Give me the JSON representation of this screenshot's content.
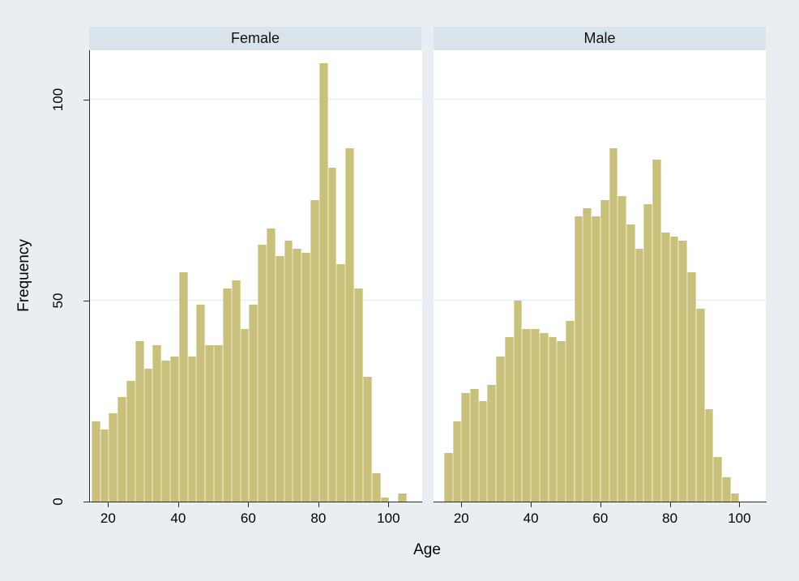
{
  "figure": {
    "bg_color": "#e8eef2",
    "plot_bg_color": "#ffffff",
    "strip_color": "#d9e3ec",
    "bar_color": "#c9c07b",
    "bar_edge_color": "#ddd7a8",
    "gridline_color": "#e2ebf2"
  },
  "chart_data": [
    {
      "type": "bar",
      "subtype": "histogram",
      "panel_title": "Female",
      "xlabel": "Age",
      "ylabel": "Frequency",
      "bin_start": 15,
      "bin_width": 2.5,
      "values": [
        20,
        18,
        22,
        26,
        30,
        40,
        33,
        39,
        35,
        36,
        57,
        36,
        49,
        39,
        39,
        53,
        55,
        43,
        49,
        64,
        68,
        61,
        65,
        63,
        62,
        75,
        109,
        83,
        59,
        88,
        53,
        31,
        7,
        1,
        0,
        2
      ],
      "xlim": [
        14.6,
        109.4
      ],
      "ylim": [
        0,
        112.3
      ],
      "x_ticks": [
        20,
        40,
        60,
        80,
        100
      ],
      "y_ticks": [
        0,
        50,
        100
      ],
      "grid_at": [
        50,
        100
      ],
      "legend_position": "none",
      "grid": "horizontal-only"
    },
    {
      "type": "bar",
      "subtype": "histogram",
      "panel_title": "Male",
      "xlabel": "Age",
      "ylabel": "Frequency",
      "bin_start": 15,
      "bin_width": 2.5,
      "values": [
        12,
        20,
        27,
        28,
        25,
        29,
        36,
        41,
        50,
        43,
        43,
        42,
        41,
        40,
        45,
        71,
        73,
        71,
        75,
        88,
        76,
        69,
        63,
        74,
        85,
        67,
        66,
        65,
        57,
        48,
        23,
        11,
        6,
        2
      ],
      "xlim": [
        12.0,
        107.6
      ],
      "ylim": [
        0,
        112.3
      ],
      "x_ticks": [
        20,
        40,
        60,
        80,
        100
      ],
      "y_ticks": [
        0,
        50,
        100
      ],
      "grid_at": [
        50,
        100
      ],
      "legend_position": "none",
      "grid": "horizontal-only"
    }
  ],
  "labels": {
    "y_axis_title": "Frequency",
    "x_axis_title": "Age",
    "female_strip": "Female",
    "male_strip": "Male",
    "y_tick_0": "0",
    "y_tick_50": "50",
    "y_tick_100": "100",
    "x_tick_20": "20",
    "x_tick_40": "40",
    "x_tick_60": "60",
    "x_tick_80": "80",
    "x_tick_100": "100"
  }
}
